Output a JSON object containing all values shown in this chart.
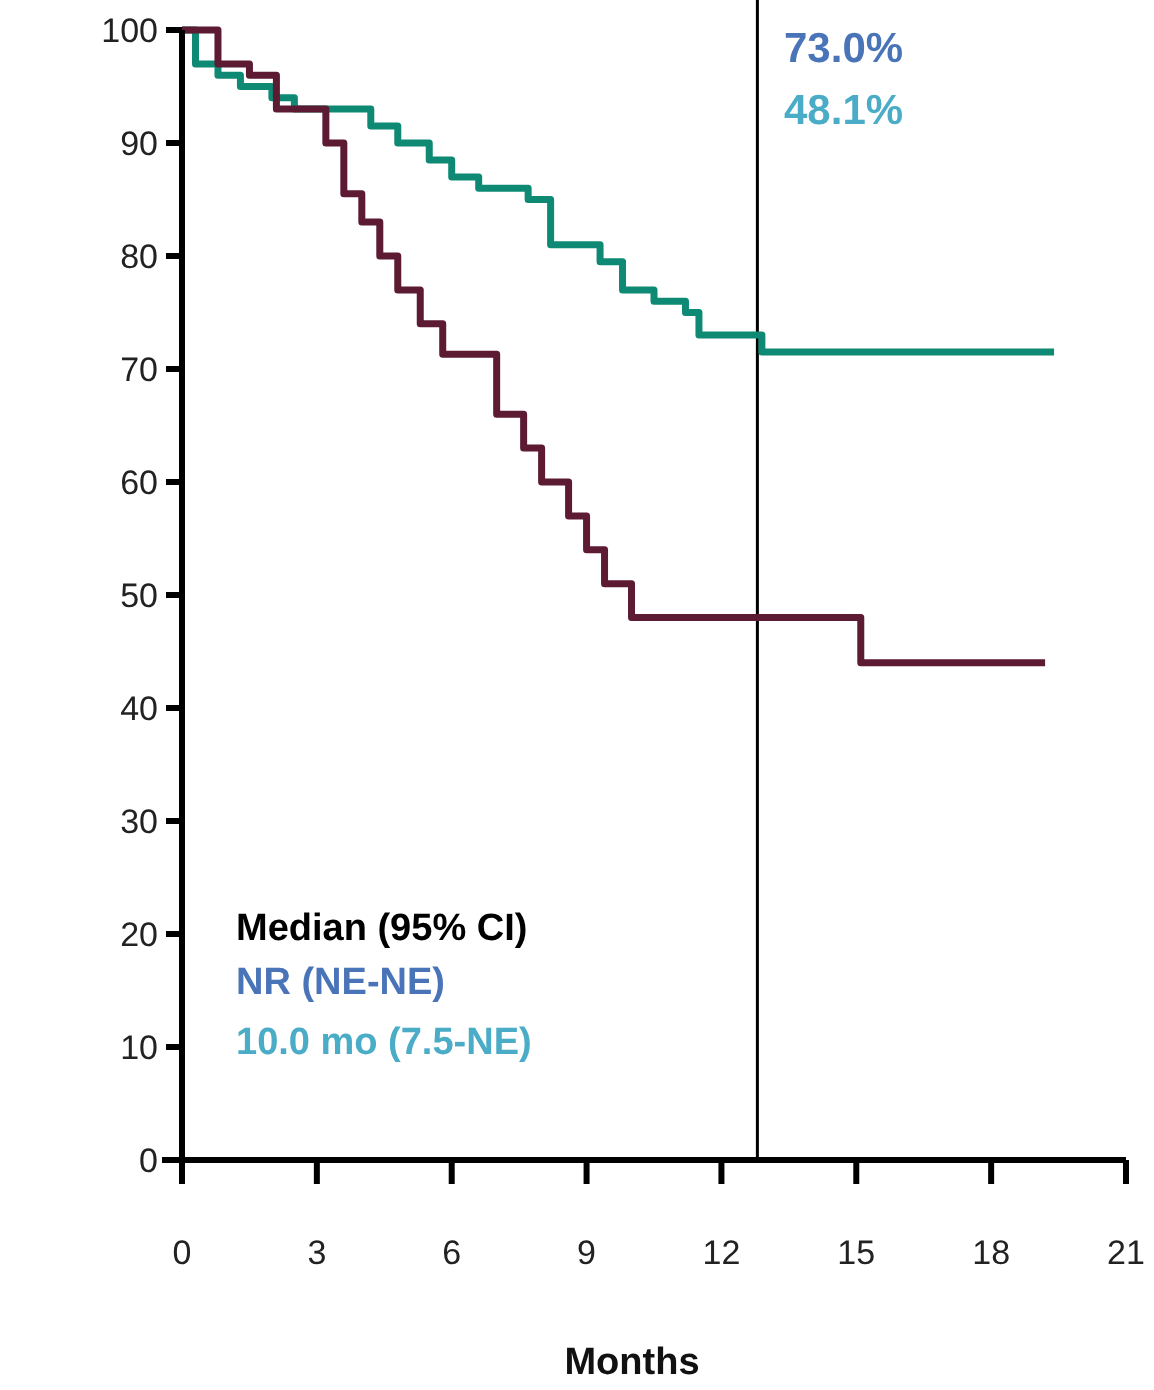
{
  "chart_data": {
    "type": "step",
    "xlabel": "Months",
    "xlim": [
      0,
      21
    ],
    "xticks": [
      0,
      3,
      6,
      9,
      12,
      15,
      18,
      21
    ],
    "ylim": [
      0,
      100
    ],
    "yticks": [
      0,
      10,
      20,
      30,
      40,
      50,
      60,
      70,
      80,
      90,
      100
    ],
    "grid": false,
    "series": [
      {
        "color": "#0e8a74",
        "x": [
          0,
          0.3,
          0.8,
          1.3,
          2,
          2.5,
          3.9,
          4.2,
          4.8,
          5.5,
          6,
          6.6,
          7.7,
          8.2,
          9.3,
          9.8,
          10.5,
          11.2,
          11.5,
          12.9,
          19.4
        ],
        "values": [
          100,
          97,
          96,
          95,
          94,
          93,
          93,
          91.5,
          90,
          88.5,
          87,
          86,
          85,
          81,
          79.5,
          77,
          76,
          75,
          73,
          71.5,
          71.5
        ]
      },
      {
        "color": "#5c1a33",
        "x": [
          0,
          0.6,
          0.8,
          1.5,
          2.1,
          3.0,
          3.2,
          3.6,
          4.0,
          4.4,
          4.8,
          5.3,
          5.8,
          6.6,
          7.0,
          7.6,
          8.0,
          8.6,
          9.0,
          9.4,
          10.0,
          15.1,
          19.2
        ],
        "values": [
          100,
          100,
          97,
          96,
          93,
          93,
          90,
          85.5,
          83,
          80,
          77,
          74,
          71.3,
          71.3,
          66,
          63,
          60,
          57,
          54,
          51,
          48,
          44,
          44
        ]
      }
    ],
    "ref_lines": [
      {
        "axis": "x",
        "value": 12.8,
        "color": "#000000"
      }
    ],
    "annotations": [
      "73.0%",
      "48.1%",
      "Median (95% CI)",
      "NR (NE-NE)",
      "10.0 mo (7.5-NE)"
    ]
  }
}
